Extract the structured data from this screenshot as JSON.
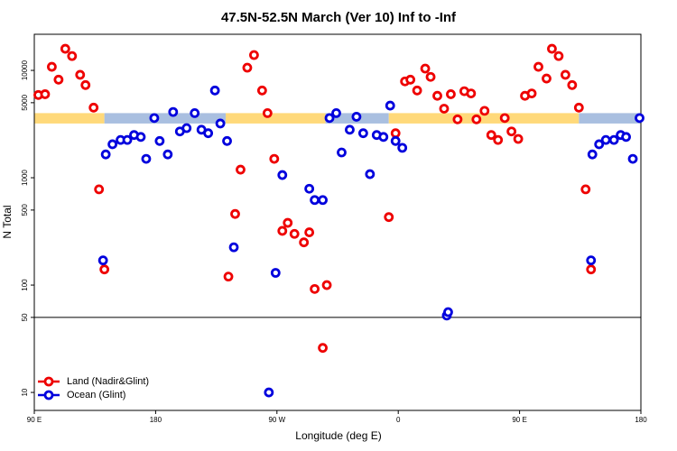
{
  "chart_data": {
    "type": "scatter",
    "title": "47.5N-52.5N March (Ver 10)   Inf to -Inf",
    "xlabel": "Longitude (deg E)",
    "ylabel": "N Total",
    "log_y": true,
    "legend": "bottom-left",
    "xlim": [
      90,
      540
    ],
    "ylim": [
      6.8,
      21700
    ],
    "xticks": [
      {
        "value": 90,
        "label": "90 E"
      },
      180,
      {
        "value": 270,
        "label": "90 W"
      },
      {
        "value": 360,
        "label": "0"
      },
      {
        "value": 450,
        "label": "90 E"
      },
      {
        "value": 540,
        "label": "180"
      }
    ],
    "yticks": [
      10,
      50,
      100,
      500,
      1000,
      5000,
      10000
    ],
    "hline": 50,
    "band": {
      "ylim": [
        3200,
        4000
      ],
      "segments": [
        {
          "xlim": [
            90,
            142
          ],
          "color": "#ffd97a"
        },
        {
          "xlim": [
            142,
            232
          ],
          "color": "#a9bfe0"
        },
        {
          "xlim": [
            232,
            306
          ],
          "color": "#ffd97a"
        },
        {
          "xlim": [
            306,
            353
          ],
          "color": "#a9bfe0"
        },
        {
          "xlim": [
            353,
            494
          ],
          "color": "#ffd97a"
        },
        {
          "xlim": [
            494,
            540
          ],
          "color": "#a9bfe0"
        }
      ]
    },
    "series": [
      {
        "name": "Land (Nadir&Glint)",
        "color": "#ee0000",
        "x": [
          93,
          98,
          103,
          108,
          113,
          118,
          124,
          128,
          134,
          138,
          142,
          234,
          239,
          243,
          248,
          253,
          259,
          263,
          268,
          274,
          278,
          283,
          290,
          294,
          298,
          304,
          307,
          353,
          358,
          365,
          369,
          374,
          380,
          384,
          389,
          394,
          399,
          404,
          409,
          414,
          418,
          424,
          429,
          434,
          439,
          444,
          449,
          454,
          459,
          464,
          470,
          474,
          479,
          484,
          489,
          494,
          499,
          503
        ],
        "values": [
          5900,
          6000,
          10800,
          8200,
          15900,
          13600,
          9100,
          7300,
          4500,
          780,
          140,
          120,
          460,
          1190,
          10600,
          13900,
          6500,
          4000,
          1500,
          320,
          380,
          300,
          250,
          310,
          92,
          26,
          100,
          430,
          2600,
          7900,
          8200,
          6500,
          10400,
          8700,
          5800,
          4400,
          6000,
          3500,
          6400,
          6100,
          3500,
          4200,
          2500,
          2250,
          3600,
          2700,
          2300,
          5800,
          6100,
          10800,
          8400,
          15900,
          13600,
          9100,
          7300,
          4500,
          780,
          140
        ]
      },
      {
        "name": "Ocean (Glint)",
        "color": "#0000dd",
        "x": [
          141,
          143,
          148,
          154,
          159,
          164,
          169,
          173,
          179,
          183,
          189,
          193,
          198,
          203,
          209,
          214,
          219,
          224,
          228,
          233,
          238,
          264,
          269,
          274,
          294,
          298,
          304,
          309,
          314,
          318,
          324,
          329,
          334,
          339,
          344,
          349,
          354,
          358,
          363,
          396,
          397,
          503,
          504,
          509,
          514,
          520,
          525,
          529,
          534,
          539
        ],
        "values": [
          170,
          1650,
          2050,
          2250,
          2250,
          2500,
          2400,
          1500,
          3600,
          2200,
          1650,
          4100,
          2700,
          2900,
          4000,
          2800,
          2600,
          6500,
          3200,
          2200,
          225,
          10,
          130,
          1060,
          790,
          620,
          620,
          3600,
          4000,
          1720,
          2800,
          3700,
          2600,
          1080,
          2500,
          2400,
          4700,
          2200,
          1900,
          52,
          56,
          170,
          1650,
          2050,
          2250,
          2250,
          2500,
          2400,
          1500,
          3600
        ]
      }
    ]
  }
}
